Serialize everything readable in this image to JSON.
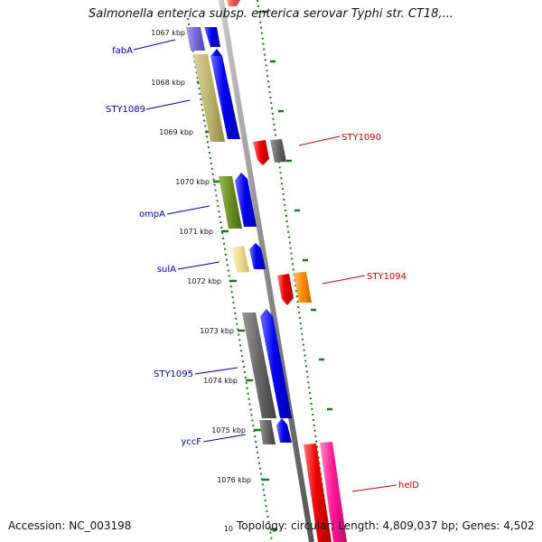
{
  "title": "Salmonella enterica subsp. enterica serovar Typhi str. CT18,...",
  "accession": "Accession: NC_003198",
  "topology": "Topology: circular; Length: 4,809,037 bp; Genes: 4,502",
  "colors": {
    "forward_label": "#0000aa",
    "reverse_label": "#cc0000",
    "tick": "#1a7a1a",
    "backbone": "#888888"
  },
  "tick_labels": [
    "1067 kbp",
    "1068 kbp",
    "1069 kbp",
    "1070 kbp",
    "1071 kbp",
    "1072 kbp",
    "1073 kbp",
    "1074 kbp",
    "1075 kbp",
    "1076 kbp",
    "10"
  ],
  "genes": [
    {
      "label": "fabA",
      "strand": "forward"
    },
    {
      "label": "STY1089",
      "strand": "forward"
    },
    {
      "label": "ompA",
      "strand": "forward"
    },
    {
      "label": "sulA",
      "strand": "forward"
    },
    {
      "label": "STY1095",
      "strand": "forward"
    },
    {
      "label": "yccF",
      "strand": "forward"
    },
    {
      "label": "STY1090",
      "strand": "reverse"
    },
    {
      "label": "STY1094",
      "strand": "reverse"
    },
    {
      "label": "helD",
      "strand": "reverse"
    }
  ]
}
